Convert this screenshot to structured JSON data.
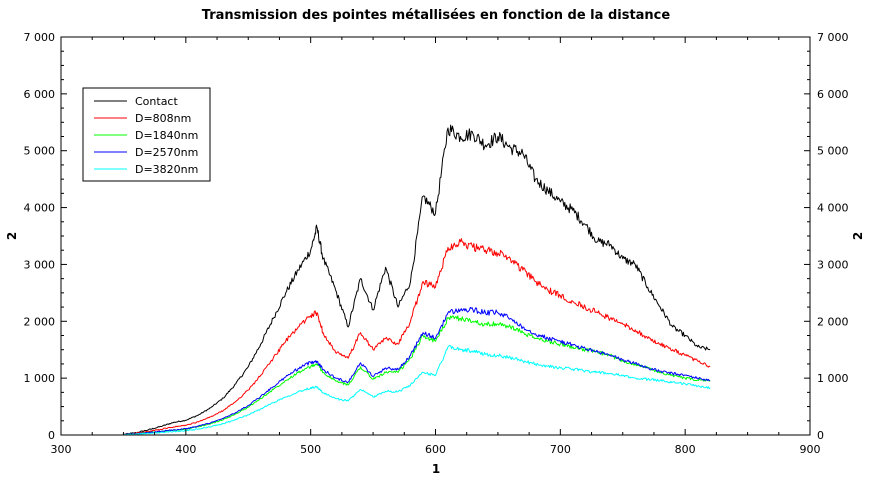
{
  "chart_data": {
    "type": "line",
    "title": "Transmission des pointes métallisées en fonction de la distance",
    "xlabel": "1",
    "ylabel": "2",
    "ylabel_right": "2",
    "xlim": [
      300,
      900
    ],
    "ylim": [
      0,
      7000
    ],
    "x_ticks": [
      300,
      400,
      500,
      600,
      700,
      800,
      900
    ],
    "x_tick_labels": [
      "300",
      "400",
      "500",
      "600",
      "700",
      "800",
      "900"
    ],
    "y_ticks": [
      0,
      1000,
      2000,
      3000,
      4000,
      5000,
      6000,
      7000
    ],
    "y_tick_labels": [
      "0",
      "1 000",
      "2 000",
      "3 000",
      "4 000",
      "5 000",
      "6 000",
      "7 000"
    ],
    "grid": false,
    "legend_position": "top-left",
    "x": [
      350,
      360,
      370,
      380,
      390,
      400,
      410,
      420,
      430,
      440,
      450,
      460,
      470,
      480,
      490,
      500,
      505,
      510,
      520,
      530,
      540,
      550,
      560,
      570,
      580,
      590,
      600,
      610,
      620,
      630,
      640,
      650,
      660,
      670,
      680,
      690,
      700,
      710,
      720,
      730,
      740,
      750,
      760,
      770,
      780,
      790,
      800,
      810,
      820
    ],
    "series": [
      {
        "name": "Contact",
        "color": "#000000",
        "values": [
          10,
          40,
          90,
          150,
          220,
          260,
          350,
          480,
          650,
          900,
          1200,
          1600,
          2050,
          2500,
          2900,
          3250,
          3650,
          3100,
          2550,
          1900,
          2750,
          2200,
          2950,
          2250,
          2700,
          4200,
          3900,
          5400,
          5250,
          5300,
          5100,
          5250,
          5050,
          4950,
          4500,
          4300,
          4100,
          3950,
          3700,
          3400,
          3350,
          3100,
          3000,
          2600,
          2250,
          1900,
          1750,
          1550,
          1500
        ]
      },
      {
        "name": "D=808nm",
        "color": "#ff0000",
        "values": [
          8,
          30,
          60,
          100,
          140,
          170,
          230,
          320,
          430,
          590,
          790,
          1050,
          1350,
          1650,
          1900,
          2100,
          2150,
          1800,
          1450,
          1350,
          1800,
          1500,
          1700,
          1600,
          2000,
          2700,
          2600,
          3300,
          3400,
          3300,
          3250,
          3200,
          3100,
          2900,
          2700,
          2550,
          2450,
          2350,
          2250,
          2150,
          2050,
          1950,
          1850,
          1700,
          1600,
          1500,
          1400,
          1300,
          1200
        ]
      },
      {
        "name": "D=1840nm",
        "color": "#00ff00",
        "values": [
          5,
          20,
          40,
          60,
          85,
          105,
          145,
          200,
          270,
          370,
          490,
          640,
          800,
          960,
          1100,
          1200,
          1250,
          1100,
          950,
          880,
          1200,
          980,
          1100,
          1100,
          1350,
          1750,
          1650,
          2050,
          2050,
          2000,
          1950,
          1950,
          1900,
          1800,
          1700,
          1650,
          1600,
          1550,
          1500,
          1450,
          1400,
          1300,
          1250,
          1180,
          1100,
          1050,
          1000,
          970,
          950
        ]
      },
      {
        "name": "D=2570nm",
        "color": "#0000ff",
        "values": [
          5,
          20,
          40,
          65,
          90,
          110,
          155,
          215,
          290,
          395,
          520,
          680,
          850,
          1020,
          1170,
          1280,
          1300,
          1150,
          1000,
          930,
          1270,
          1030,
          1180,
          1150,
          1400,
          1800,
          1700,
          2150,
          2200,
          2200,
          2150,
          2150,
          2050,
          1900,
          1780,
          1700,
          1650,
          1580,
          1520,
          1460,
          1400,
          1320,
          1260,
          1180,
          1120,
          1080,
          1050,
          1000,
          960
        ]
      },
      {
        "name": "D=3820nm",
        "color": "#00ffff",
        "values": [
          4,
          15,
          30,
          45,
          60,
          75,
          105,
          145,
          200,
          270,
          355,
          460,
          570,
          670,
          760,
          830,
          850,
          740,
          640,
          600,
          800,
          670,
          770,
          760,
          880,
          1100,
          1050,
          1550,
          1500,
          1480,
          1420,
          1400,
          1360,
          1300,
          1250,
          1210,
          1180,
          1160,
          1130,
          1100,
          1080,
          1040,
          1000,
          980,
          960,
          930,
          900,
          860,
          830
        ]
      }
    ]
  }
}
